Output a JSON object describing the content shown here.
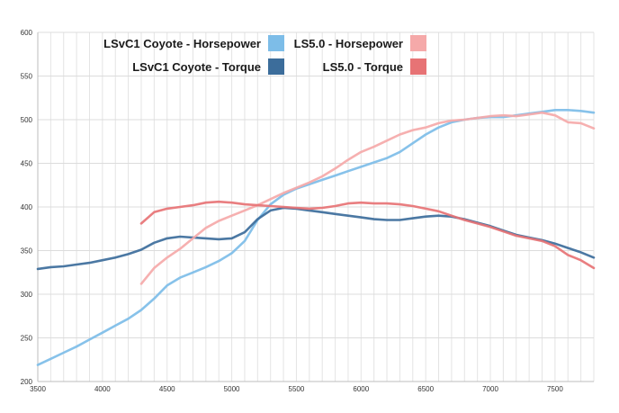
{
  "chart_data": {
    "type": "line",
    "title": "",
    "xlabel": "",
    "ylabel": "",
    "xlim": [
      3500,
      7800
    ],
    "ylim": [
      200,
      600
    ],
    "x_ticks": [
      3500,
      4000,
      4500,
      5000,
      5500,
      6000,
      6500,
      7000,
      7500
    ],
    "y_ticks": [
      200,
      250,
      300,
      350,
      400,
      450,
      500,
      550,
      600
    ],
    "grid": true,
    "legend_position": "top-center",
    "series": [
      {
        "name": "LSvC1 Coyote - Horsepower",
        "color": "#7dbde8",
        "x": [
          3500,
          3600,
          3700,
          3800,
          3900,
          4000,
          4100,
          4200,
          4300,
          4400,
          4500,
          4600,
          4700,
          4800,
          4900,
          5000,
          5100,
          5200,
          5300,
          5400,
          5500,
          5600,
          5700,
          5800,
          5900,
          6000,
          6100,
          6200,
          6300,
          6400,
          6500,
          6600,
          6700,
          6800,
          6900,
          7000,
          7100,
          7200,
          7300,
          7400,
          7500,
          7600,
          7700,
          7800
        ],
        "y": [
          219,
          226,
          233,
          240,
          248,
          256,
          264,
          272,
          282,
          295,
          310,
          319,
          325,
          331,
          338,
          347,
          361,
          385,
          403,
          414,
          421,
          426,
          431,
          436,
          441,
          446,
          451,
          456,
          463,
          473,
          483,
          491,
          497,
          500,
          502,
          503,
          503,
          505,
          507,
          509,
          511,
          511,
          510,
          508
        ]
      },
      {
        "name": "LSvC1 Coyote - Torque",
        "color": "#3c6d9b",
        "x": [
          3500,
          3600,
          3700,
          3800,
          3900,
          4000,
          4100,
          4200,
          4300,
          4400,
          4500,
          4600,
          4700,
          4800,
          4900,
          5000,
          5100,
          5200,
          5300,
          5400,
          5500,
          5600,
          5700,
          5800,
          5900,
          6000,
          6100,
          6200,
          6300,
          6400,
          6500,
          6600,
          6700,
          6800,
          6900,
          7000,
          7100,
          7200,
          7300,
          7400,
          7500,
          7600,
          7700,
          7800
        ],
        "y": [
          329,
          331,
          332,
          334,
          336,
          339,
          342,
          346,
          351,
          359,
          364,
          366,
          365,
          364,
          363,
          364,
          371,
          386,
          396,
          399,
          398,
          396,
          394,
          392,
          390,
          388,
          386,
          385,
          385,
          387,
          389,
          390,
          389,
          386,
          382,
          378,
          373,
          368,
          365,
          362,
          358,
          353,
          348,
          342
        ]
      },
      {
        "name": "LS5.0 - Horsepower",
        "color": "#f5a9a9",
        "x": [
          4300,
          4400,
          4500,
          4600,
          4700,
          4800,
          4900,
          5000,
          5100,
          5200,
          5300,
          5400,
          5500,
          5600,
          5700,
          5800,
          5900,
          6000,
          6100,
          6200,
          6300,
          6400,
          6500,
          6600,
          6700,
          6800,
          6900,
          7000,
          7100,
          7200,
          7300,
          7400,
          7500,
          7600,
          7700,
          7800
        ],
        "y": [
          312,
          330,
          342,
          352,
          364,
          376,
          384,
          390,
          396,
          402,
          409,
          416,
          422,
          428,
          435,
          444,
          454,
          463,
          469,
          476,
          483,
          488,
          491,
          496,
          499,
          500,
          502,
          504,
          505,
          504,
          506,
          508,
          505,
          497,
          496,
          490
        ]
      },
      {
        "name": "LS5.0 - Torque",
        "color": "#e77375",
        "x": [
          4300,
          4400,
          4500,
          4600,
          4700,
          4800,
          4900,
          5000,
          5100,
          5200,
          5300,
          5400,
          5500,
          5600,
          5700,
          5800,
          5900,
          6000,
          6100,
          6200,
          6300,
          6400,
          6500,
          6600,
          6700,
          6800,
          6900,
          7000,
          7100,
          7200,
          7300,
          7400,
          7500,
          7600,
          7700,
          7800
        ],
        "y": [
          381,
          394,
          398,
          400,
          402,
          405,
          406,
          405,
          403,
          402,
          401,
          400,
          399,
          398,
          399,
          401,
          404,
          405,
          404,
          404,
          403,
          401,
          398,
          395,
          390,
          385,
          381,
          377,
          372,
          367,
          364,
          361,
          355,
          345,
          339,
          330
        ]
      }
    ]
  }
}
